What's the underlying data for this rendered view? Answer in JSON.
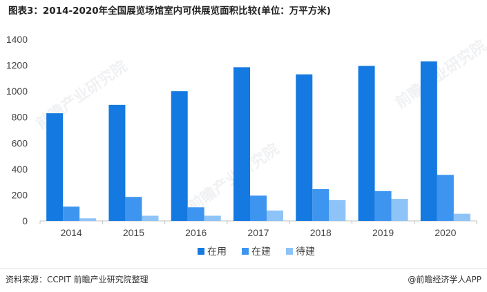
{
  "header": {
    "title": "图表3：2014-2020年全国展览场馆室内可供展览面积比较(单位：万平方米)"
  },
  "watermark": "前瞻产业研究院",
  "footer": {
    "source": "资料来源：CCPIT 前瞻产业研究院整理",
    "brand": "@前瞻经济学人APP"
  },
  "chart_data": {
    "type": "bar",
    "title": "图表3：2014-2020年全国展览场馆室内可供展览面积比较(单位：万平方米)",
    "categories": [
      "2014",
      "2015",
      "2016",
      "2017",
      "2018",
      "2019",
      "2020"
    ],
    "series": [
      {
        "name": "在用",
        "color": "#1479e0",
        "values": [
          830,
          895,
          1000,
          1185,
          1130,
          1195,
          1230
        ]
      },
      {
        "name": "在建",
        "color": "#3d95f0",
        "values": [
          110,
          185,
          105,
          195,
          245,
          230,
          355
        ]
      },
      {
        "name": "待建",
        "color": "#8ec3f7",
        "values": [
          20,
          40,
          40,
          80,
          160,
          170,
          55
        ]
      }
    ],
    "ylim": [
      0,
      1400
    ],
    "yticks": [
      0,
      200,
      400,
      600,
      800,
      1000,
      1200,
      1400
    ],
    "grid": false,
    "legend": "bottom"
  }
}
